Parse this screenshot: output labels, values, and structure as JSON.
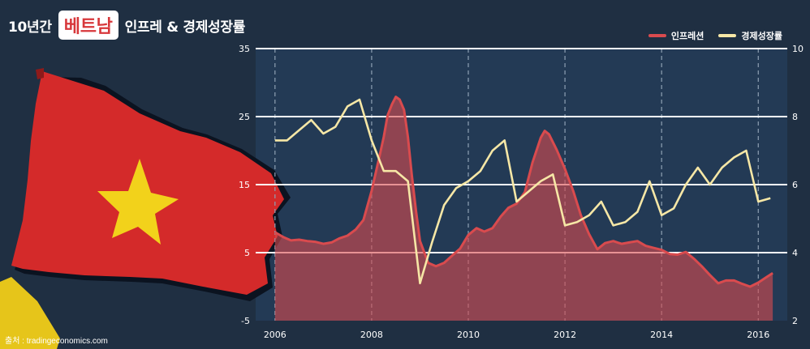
{
  "title": {
    "prefix": "10년간",
    "highlight": "베트남",
    "suffix": "인프레 & 경제성장률"
  },
  "source": "출처 : tradingeconomics.com",
  "colors": {
    "background": "#1f2f42",
    "plot_bg": "#233a55",
    "inflation": "#d94b4e",
    "gdp": "#f6e7a6",
    "highlight_text": "#d7373a",
    "flag_red": "#d42a2a",
    "flag_star": "#f2d21b"
  },
  "chart_data": {
    "type": "line",
    "x_ticks": [
      "2006",
      "2008",
      "2010",
      "2012",
      "2014",
      "2016"
    ],
    "x_range": [
      2006,
      2016.4
    ],
    "y_left": {
      "range": [
        -5,
        35
      ],
      "ticks": [
        "35",
        "25",
        "15",
        "5",
        "-5"
      ]
    },
    "y_right": {
      "range": [
        2,
        10
      ],
      "ticks": [
        "10",
        "8",
        "6",
        "4",
        "2"
      ]
    },
    "grid": "horizontal at major ticks, dashed vertical at year ticks",
    "legend_position": "top-right",
    "series": [
      {
        "name": "인프레션",
        "axis": "left",
        "style": "area",
        "x": [
          2006.0,
          2006.17,
          2006.33,
          2006.5,
          2006.67,
          2006.83,
          2007.0,
          2007.17,
          2007.33,
          2007.5,
          2007.67,
          2007.83,
          2008.0,
          2008.17,
          2008.25,
          2008.33,
          2008.42,
          2008.5,
          2008.58,
          2008.67,
          2008.75,
          2008.83,
          2008.92,
          2009.0,
          2009.17,
          2009.33,
          2009.5,
          2009.67,
          2009.83,
          2010.0,
          2010.17,
          2010.33,
          2010.5,
          2010.67,
          2010.83,
          2011.0,
          2011.17,
          2011.33,
          2011.5,
          2011.58,
          2011.67,
          2011.83,
          2012.0,
          2012.17,
          2012.33,
          2012.5,
          2012.67,
          2012.83,
          2013.0,
          2013.17,
          2013.33,
          2013.5,
          2013.67,
          2013.83,
          2014.0,
          2014.17,
          2014.33,
          2014.5,
          2014.67,
          2014.83,
          2015.0,
          2015.17,
          2015.33,
          2015.5,
          2015.67,
          2015.83,
          2016.0,
          2016.17,
          2016.3
        ],
        "values": [
          8.0,
          7.3,
          6.8,
          6.9,
          6.7,
          6.6,
          6.3,
          6.5,
          7.1,
          7.5,
          8.4,
          9.8,
          14.1,
          19.4,
          22.0,
          25.2,
          26.8,
          27.9,
          27.5,
          26.0,
          22.0,
          16.5,
          11.0,
          6.7,
          3.5,
          3.0,
          3.5,
          4.6,
          5.6,
          7.6,
          8.6,
          8.1,
          8.6,
          10.3,
          11.6,
          12.2,
          13.9,
          18.3,
          21.9,
          22.9,
          22.4,
          20.1,
          17.3,
          14.1,
          10.5,
          7.7,
          5.5,
          6.4,
          6.7,
          6.3,
          6.5,
          6.7,
          6.0,
          5.7,
          5.4,
          4.8,
          4.7,
          5.1,
          4.1,
          3.0,
          1.7,
          0.5,
          0.9,
          0.9,
          0.4,
          0.0,
          0.6,
          1.4,
          2.0
        ]
      },
      {
        "name": "경제성장률",
        "axis": "right",
        "style": "line",
        "x": [
          2006.0,
          2006.25,
          2006.5,
          2006.75,
          2007.0,
          2007.25,
          2007.5,
          2007.75,
          2008.0,
          2008.25,
          2008.5,
          2008.75,
          2009.0,
          2009.25,
          2009.5,
          2009.75,
          2010.0,
          2010.25,
          2010.5,
          2010.75,
          2011.0,
          2011.25,
          2011.5,
          2011.75,
          2012.0,
          2012.25,
          2012.5,
          2012.75,
          2013.0,
          2013.25,
          2013.5,
          2013.75,
          2014.0,
          2014.25,
          2014.5,
          2014.75,
          2015.0,
          2015.25,
          2015.5,
          2015.75,
          2016.0,
          2016.25
        ],
        "values": [
          7.3,
          7.3,
          7.6,
          7.9,
          7.5,
          7.7,
          8.3,
          8.5,
          7.3,
          6.4,
          6.4,
          6.1,
          3.1,
          4.3,
          5.4,
          5.9,
          6.1,
          6.4,
          7.0,
          7.3,
          5.5,
          5.8,
          6.1,
          6.3,
          4.8,
          4.9,
          5.1,
          5.5,
          4.8,
          4.9,
          5.2,
          6.1,
          5.1,
          5.3,
          6.0,
          6.5,
          6.0,
          6.5,
          6.8,
          7.0,
          5.5,
          5.6
        ]
      }
    ]
  }
}
